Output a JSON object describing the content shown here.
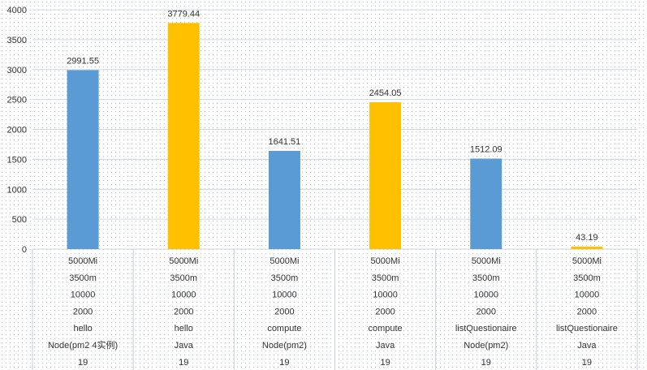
{
  "chart_data": {
    "type": "bar",
    "title": "",
    "xlabel": "",
    "ylabel": "",
    "ylim": [
      0,
      4000
    ],
    "yticks": [
      0,
      500,
      1000,
      1500,
      2000,
      2500,
      3000,
      3500,
      4000
    ],
    "grid": true,
    "legend": "none",
    "category_rows": [
      [
        "5000Mi",
        "3500m",
        "10000",
        "2000",
        "hello",
        "Node(pm2 4实例)",
        "19"
      ],
      [
        "5000Mi",
        "3500m",
        "10000",
        "2000",
        "hello",
        "Java",
        "19"
      ],
      [
        "5000Mi",
        "3500m",
        "10000",
        "2000",
        "compute",
        "Node(pm2)",
        "19"
      ],
      [
        "5000Mi",
        "3500m",
        "10000",
        "2000",
        "compute",
        "Java",
        "19"
      ],
      [
        "5000Mi",
        "3500m",
        "10000",
        "2000",
        "listQuestionaire",
        "Node(pm2)",
        "19"
      ],
      [
        "5000Mi",
        "3500m",
        "10000",
        "2000",
        "listQuestionaire",
        "Java",
        "19"
      ]
    ],
    "values": [
      2991.55,
      3779.44,
      1641.51,
      2454.05,
      1512.09,
      43.19
    ],
    "value_labels": [
      "2991.55",
      "3779.44",
      "1641.51",
      "2454.05",
      "1512.09",
      "43.19"
    ],
    "bar_colors": [
      "#5b9bd5",
      "#ffc000",
      "#5b9bd5",
      "#ffc000",
      "#5b9bd5",
      "#ffc000"
    ]
  }
}
